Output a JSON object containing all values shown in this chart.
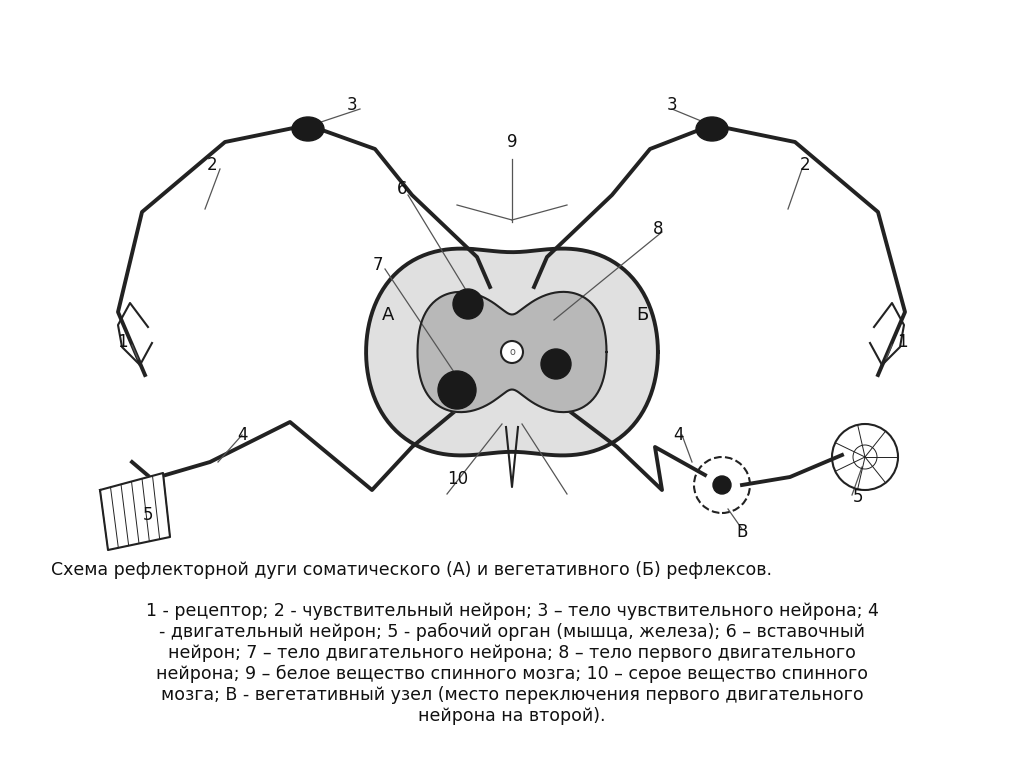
{
  "bg_color": "#ffffff",
  "fig_width": 10.24,
  "fig_height": 7.67,
  "title_line": "Схема рефлекторной дуги соматического (А) и вегетативного (Б) рефлексов.",
  "legend_lines": [
    "1 - рецептор; 2 - чувствительный нейрон; 3 – тело чувствительного нейрона; 4",
    "- двигательный нейрон; 5 - рабочий орган (мышца, железа); 6 – вставочный",
    "нейрон; 7 – тело двигательного нейрона; 8 – тело первого двигательного",
    "нейрона; 9 – белое вещество спинного мозга; 10 – серое вещество спинного",
    "мозга; В - вегетативный узел (место переключения первого двигательного",
    "нейрона на второй)."
  ],
  "text_fontsize": 13,
  "label_fontsize": 12,
  "line_color": "#222222"
}
